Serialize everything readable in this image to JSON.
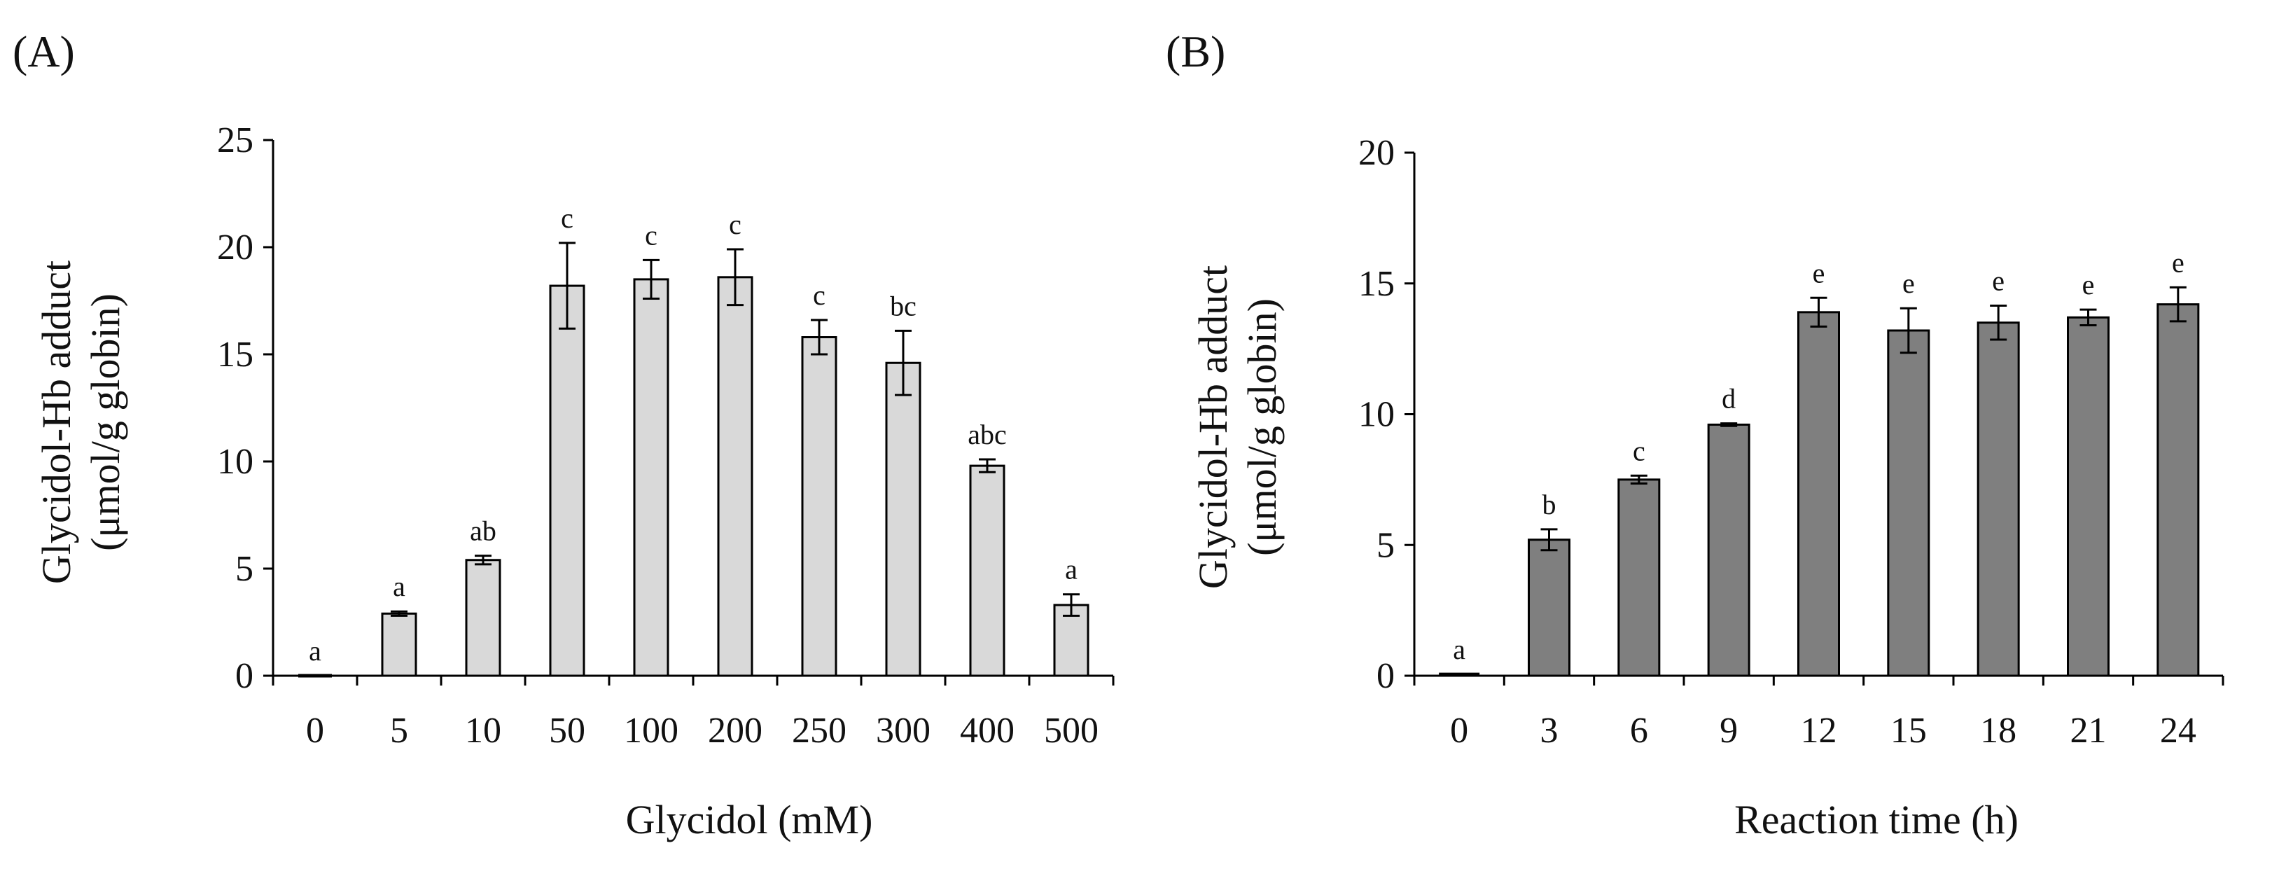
{
  "figure": {
    "colors": {
      "axis": "#000000",
      "text": "#111111",
      "bar_outline": "#000000"
    }
  },
  "chart_data": [
    {
      "id": "A",
      "panel_label": "(A)",
      "type": "bar",
      "xlabel": "Glycidol (mM)",
      "ylabel_line1": "Glycidol-Hb adduct",
      "ylabel_line2": "(μmol/g globin)",
      "ylim": [
        0,
        25
      ],
      "yticks": [
        0,
        5,
        10,
        15,
        20,
        25
      ],
      "bar_color": "#d9d9d9",
      "categories": [
        "0",
        "5",
        "10",
        "50",
        "100",
        "200",
        "250",
        "300",
        "400",
        "500"
      ],
      "values": [
        0,
        2.9,
        5.4,
        18.2,
        18.5,
        18.6,
        15.8,
        14.6,
        9.8,
        3.3
      ],
      "errors": [
        0,
        0.1,
        0.2,
        2.0,
        0.9,
        1.3,
        0.8,
        1.5,
        0.3,
        0.5
      ],
      "labels": [
        "a",
        "a",
        "ab",
        "c",
        "c",
        "c",
        "c",
        "bc",
        "abc",
        "a"
      ]
    },
    {
      "id": "B",
      "panel_label": "(B)",
      "type": "bar",
      "xlabel": "Reaction time (h)",
      "ylabel_line1": "Glycidol-Hb adduct",
      "ylabel_line2": "(μmol/g globin)",
      "ylim": [
        0,
        20
      ],
      "yticks": [
        0,
        5,
        10,
        15,
        20
      ],
      "bar_color": "#7f7f7f",
      "categories": [
        "0",
        "3",
        "6",
        "9",
        "12",
        "15",
        "18",
        "21",
        "24"
      ],
      "values": [
        0.05,
        5.2,
        7.5,
        9.6,
        13.9,
        13.2,
        13.5,
        13.7,
        14.2
      ],
      "errors": [
        0,
        0.4,
        0.15,
        0.05,
        0.55,
        0.85,
        0.65,
        0.3,
        0.65
      ],
      "labels": [
        "a",
        "b",
        "c",
        "d",
        "e",
        "e",
        "e",
        "e",
        "e"
      ]
    }
  ]
}
